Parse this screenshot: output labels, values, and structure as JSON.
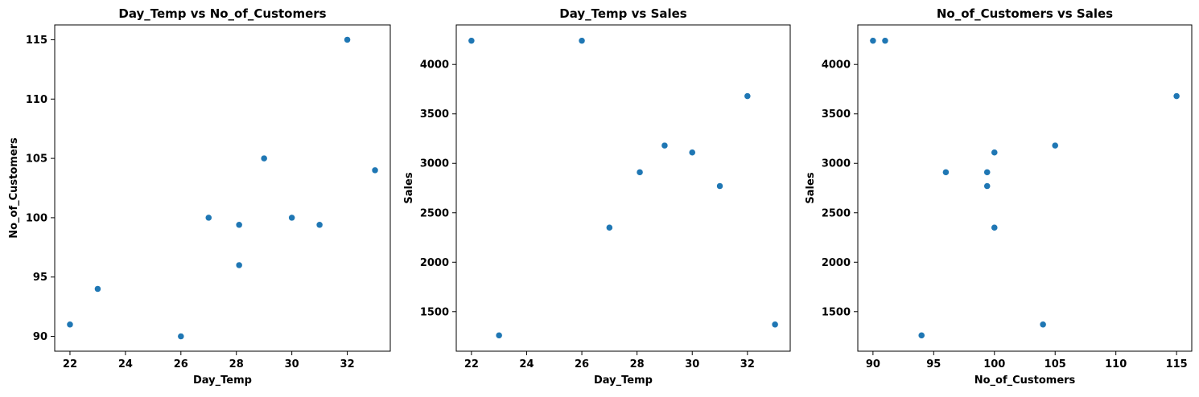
{
  "figure": {
    "background": "#ffffff",
    "point_color": "#1f77b4",
    "axis_color": "#000000"
  },
  "chart_data": [
    {
      "type": "scatter",
      "title": "Day_Temp vs No_of_Customers",
      "xlabel": "Day_Temp",
      "ylabel": "No_of_Customers",
      "xlim": [
        21.45,
        33.55
      ],
      "ylim": [
        88.75,
        116.25
      ],
      "xticks": [
        22,
        24,
        26,
        28,
        30,
        32
      ],
      "yticks": [
        90,
        95,
        100,
        105,
        110,
        115
      ],
      "tick_labels": {
        "x": [
          "22",
          "24",
          "26",
          "28",
          "30",
          "32"
        ],
        "y": [
          "90",
          "95",
          "100",
          "105",
          "110",
          "115"
        ]
      },
      "points": [
        {
          "x": 22,
          "y": 91
        },
        {
          "x": 23,
          "y": 94
        },
        {
          "x": 26,
          "y": 90
        },
        {
          "x": 27,
          "y": 100
        },
        {
          "x": 28.1,
          "y": 99.4
        },
        {
          "x": 28.1,
          "y": 96
        },
        {
          "x": 29,
          "y": 105
        },
        {
          "x": 30,
          "y": 100
        },
        {
          "x": 31,
          "y": 99.4
        },
        {
          "x": 32,
          "y": 115
        },
        {
          "x": 33,
          "y": 104
        }
      ],
      "grid": false,
      "legend": "none"
    },
    {
      "type": "scatter",
      "title": "Day_Temp vs Sales",
      "xlabel": "Day_Temp",
      "ylabel": "Sales",
      "xlim": [
        21.45,
        33.55
      ],
      "ylim": [
        1100,
        4400
      ],
      "xticks": [
        22,
        24,
        26,
        28,
        30,
        32
      ],
      "yticks": [
        1500,
        2000,
        2500,
        3000,
        3500,
        4000
      ],
      "tick_labels": {
        "x": [
          "22",
          "24",
          "26",
          "28",
          "30",
          "32"
        ],
        "y": [
          "1500",
          "2000",
          "2500",
          "3000",
          "3500",
          "4000"
        ]
      },
      "points": [
        {
          "x": 22,
          "y": 4240
        },
        {
          "x": 23,
          "y": 1260
        },
        {
          "x": 26,
          "y": 4240
        },
        {
          "x": 27,
          "y": 2350
        },
        {
          "x": 28.1,
          "y": 2910
        },
        {
          "x": 29,
          "y": 3180
        },
        {
          "x": 30,
          "y": 3110
        },
        {
          "x": 31,
          "y": 2770
        },
        {
          "x": 32,
          "y": 3680
        },
        {
          "x": 33,
          "y": 1370
        }
      ],
      "grid": false,
      "legend": "none"
    },
    {
      "type": "scatter",
      "title": "No_of_Customers vs Sales",
      "xlabel": "No_of_Customers",
      "ylabel": "Sales",
      "xlim": [
        88.75,
        116.25
      ],
      "ylim": [
        1100,
        4400
      ],
      "xticks": [
        90,
        95,
        100,
        105,
        110,
        115
      ],
      "yticks": [
        1500,
        2000,
        2500,
        3000,
        3500,
        4000
      ],
      "tick_labels": {
        "x": [
          "90",
          "95",
          "100",
          "105",
          "110",
          "115"
        ],
        "y": [
          "1500",
          "2000",
          "2500",
          "3000",
          "3500",
          "4000"
        ]
      },
      "points": [
        {
          "x": 90,
          "y": 4240
        },
        {
          "x": 91,
          "y": 4240
        },
        {
          "x": 94,
          "y": 1260
        },
        {
          "x": 96,
          "y": 2910
        },
        {
          "x": 99.4,
          "y": 2910
        },
        {
          "x": 99.4,
          "y": 2770
        },
        {
          "x": 100,
          "y": 3110
        },
        {
          "x": 100,
          "y": 2350
        },
        {
          "x": 104,
          "y": 1370
        },
        {
          "x": 105,
          "y": 3180
        },
        {
          "x": 115,
          "y": 3680
        }
      ],
      "grid": false,
      "legend": "none"
    }
  ]
}
